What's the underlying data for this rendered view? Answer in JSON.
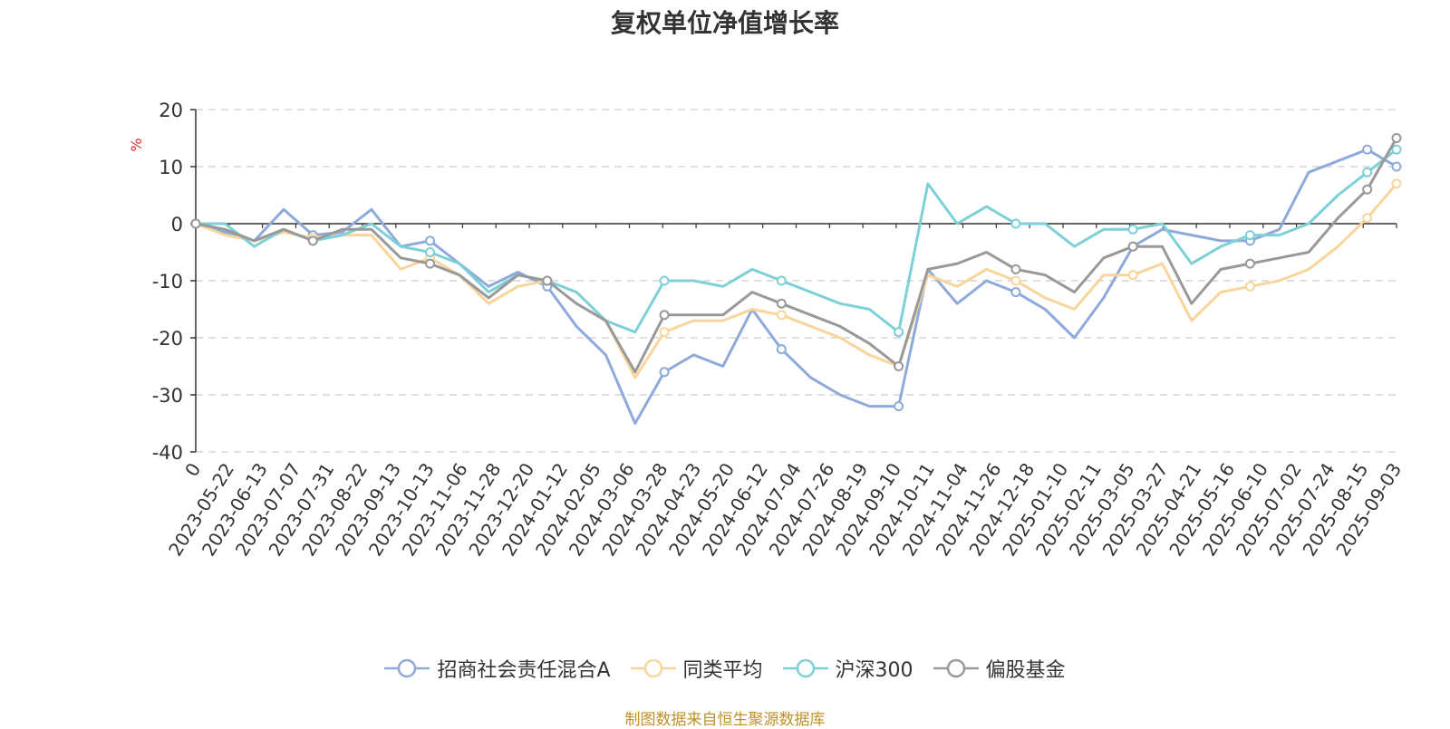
{
  "chart_data": {
    "type": "line",
    "title": "复权单位净值增长率",
    "ylabel": "%",
    "ylim": [
      -40,
      20
    ],
    "yticks": [
      20,
      10,
      0,
      -10,
      -20,
      -30,
      -40
    ],
    "xticks": [
      "0",
      "2023-05-22",
      "2023-06-13",
      "2023-07-07",
      "2023-07-31",
      "2023-08-22",
      "2023-09-13",
      "2023-10-13",
      "2023-11-06",
      "2023-11-28",
      "2023-12-20",
      "2024-01-12",
      "2024-02-05",
      "2024-03-06",
      "2024-03-28",
      "2024-04-23",
      "2024-05-20",
      "2024-06-12",
      "2024-07-04",
      "2024-07-26",
      "2024-08-19",
      "2024-09-10",
      "2024-10-11",
      "2024-11-04",
      "2024-11-26",
      "2024-12-18",
      "2025-01-10",
      "2025-02-11",
      "2025-03-05",
      "2025-03-27",
      "2025-04-21",
      "2025-05-16",
      "2025-06-10",
      "2025-07-02",
      "2025-07-24",
      "2025-08-15",
      "2025-09-03"
    ],
    "grid": true,
    "legend_position": "bottom",
    "source_note": "制图数据来自恒生聚源数据库",
    "series": [
      {
        "name": "招商社会责任混合A",
        "color": "#8eaadb",
        "values": [
          0,
          -1.5,
          -3,
          2.5,
          -2,
          -1.5,
          2.5,
          -4,
          -3,
          -7,
          -11,
          -8.5,
          -11,
          -18,
          -23,
          -35,
          -26,
          -23,
          -25,
          -15,
          -22,
          -27,
          -30,
          -32,
          -32,
          -8,
          -14,
          -10,
          -12,
          -15,
          -20,
          -13,
          -4,
          -1,
          -2,
          -3,
          -3,
          -1,
          9,
          11,
          13,
          10
        ]
      },
      {
        "name": "同类平均",
        "color": "#f9d59b",
        "values": [
          0,
          -2,
          -3,
          -1.5,
          -2.5,
          -2,
          -2,
          -8,
          -6,
          -9,
          -14,
          -11,
          -10,
          -12,
          -17,
          -27,
          -19,
          -17,
          -17,
          -15,
          -16,
          -18,
          -20,
          -23,
          -25,
          -9,
          -11,
          -8,
          -10,
          -13,
          -15,
          -9,
          -9,
          -7,
          -17,
          -12,
          -11,
          -10,
          -8,
          -4,
          1,
          7
        ]
      },
      {
        "name": "沪深300",
        "color": "#7ed0d8",
        "values": [
          0,
          0,
          -4,
          -1,
          -3,
          -2,
          0,
          -4,
          -5,
          -7,
          -12,
          -9,
          -10,
          -12,
          -17,
          -19,
          -10,
          -10,
          -11,
          -8,
          -10,
          -12,
          -14,
          -15,
          -19,
          7,
          0,
          3,
          0,
          0,
          -4,
          -1,
          -1,
          0,
          -7,
          -4,
          -2,
          -2,
          0,
          5,
          9,
          13
        ]
      },
      {
        "name": "偏股基金",
        "color": "#999999",
        "values": [
          0,
          -1,
          -3,
          -1,
          -3,
          -1,
          -1,
          -6,
          -7,
          -9,
          -13,
          -9,
          -10,
          -14,
          -17,
          -26,
          -16,
          -16,
          -16,
          -12,
          -14,
          -16,
          -18,
          -21,
          -25,
          -8,
          -7,
          -5,
          -8,
          -9,
          -12,
          -6,
          -4,
          -4,
          -14,
          -8,
          -7,
          -6,
          -5,
          1,
          6,
          15
        ]
      }
    ]
  }
}
